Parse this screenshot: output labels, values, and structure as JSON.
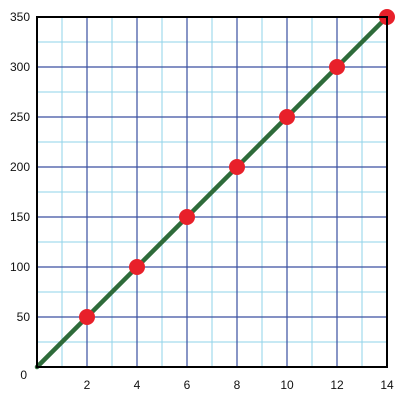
{
  "chart_data": {
    "type": "line",
    "title": "",
    "xlabel": "",
    "ylabel": "",
    "xlim": [
      0,
      14
    ],
    "ylim": [
      0,
      350
    ],
    "x_ticks": [
      2,
      4,
      6,
      8,
      10,
      12,
      14
    ],
    "y_ticks": [
      50,
      100,
      150,
      200,
      250,
      300,
      350
    ],
    "origin_label": "0",
    "major_grid_x": [
      2,
      4,
      6,
      8,
      10,
      12
    ],
    "minor_grid_x": [
      1,
      3,
      5,
      7,
      9,
      11,
      13
    ],
    "major_grid_y": [
      50,
      100,
      150,
      200,
      250,
      300
    ],
    "minor_grid_y": [
      25,
      75,
      125,
      175,
      225,
      275,
      325
    ],
    "grid": true,
    "series": [
      {
        "x": [
          0,
          14
        ],
        "y": [
          0,
          350
        ],
        "color": "#2e6b3a",
        "markers": false
      },
      {
        "x": [
          2,
          4,
          6,
          8,
          10,
          12,
          14
        ],
        "y": [
          50,
          100,
          150,
          200,
          250,
          300,
          350
        ],
        "color": "#e8202a",
        "markers": true,
        "line": false
      }
    ],
    "colors": {
      "major_grid": "#3a4fa0",
      "minor_grid": "#8fd3ea",
      "axis": "#000000"
    }
  }
}
